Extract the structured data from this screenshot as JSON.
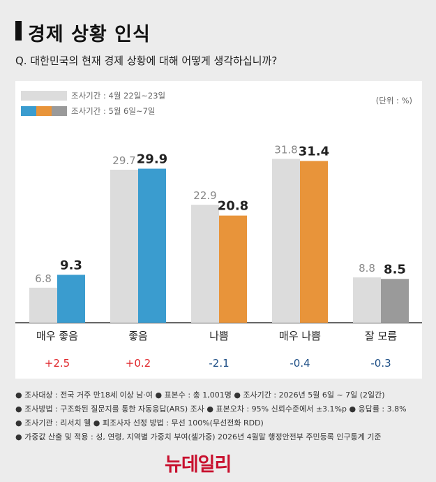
{
  "header": {
    "title": "경제 상황 인식",
    "question": "Q. 대한민국의 현재 경제 상황에 대해 어떻게 생각하십니까?"
  },
  "legend": {
    "prev_label": "조사기간 : 4월 22일~23일",
    "curr_label": "조사기간 : 5월 6일~7일",
    "unit": "(단위 : %)"
  },
  "colors": {
    "prev": "#dcdcdc",
    "blue": "#3a9ccf",
    "orange": "#e8943a",
    "gray": "#9a9a9a",
    "pos_change": "#e0262b",
    "neg_change": "#1e4f86"
  },
  "chart_data": {
    "type": "bar",
    "categories": [
      "매우 좋음",
      "좋음",
      "나쁨",
      "매우 나쁨",
      "잘 모름"
    ],
    "series": [
      {
        "name": "조사기간 : 4월 22일~23일",
        "values": [
          6.8,
          29.7,
          22.9,
          31.8,
          8.8
        ]
      },
      {
        "name": "조사기간 : 5월 6일~7일",
        "values": [
          9.3,
          29.9,
          20.8,
          31.4,
          8.5
        ]
      }
    ],
    "current_bar_colors": [
      "blue",
      "blue",
      "orange",
      "orange",
      "gray"
    ],
    "value_labels_prev": [
      "6.8",
      "29.7",
      "22.9",
      "31.8",
      "8.8"
    ],
    "value_labels_curr": [
      "9.3",
      "29.9",
      "20.8",
      "31.4",
      "8.5"
    ],
    "changes": [
      "+2.5",
      "+0.2",
      "-2.1",
      "-0.4",
      "-0.3"
    ],
    "ylim": [
      0,
      32
    ],
    "grid": false,
    "legend_position": "top-left"
  },
  "footer": {
    "line1": "● 조사대상 : 전국 거주 만18세 이상 남·여  ● 표본수 : 총 1,001명  ● 조사기간 : 2026년 5월 6일 ~ 7일 (2일간)",
    "line2": "● 조사방법 : 구조화된 질문지를 통한 자동응답(ARS) 조사  ● 표본오차 : 95% 신뢰수준에서 ±3.1%p  ● 응답률 : 3.8%",
    "line3": "● 조사기관 : 리서치 웰  ● 피조사자 선정 방법 : 무선 100%(무선전화 RDD)",
    "line4": "● 가중값 산출 및 적용 : 성, 연령, 지역별 가중치 부여(셀가중) 2026년 4월말 행정안전부 주민등록 인구통계 기준"
  },
  "logo": {
    "text": "뉴데일리"
  }
}
